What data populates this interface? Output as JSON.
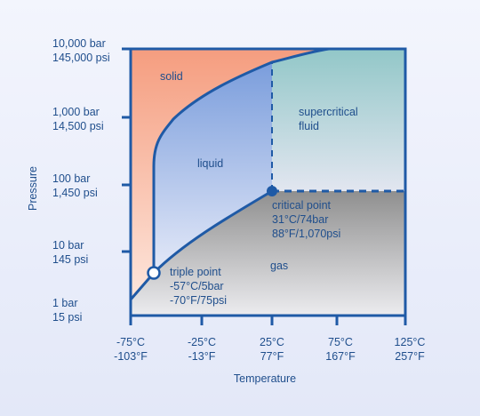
{
  "colors": {
    "axis": "#1f5aa6",
    "curve": "#1f5aa6",
    "text": "#1f4e8c",
    "solid_region": "#f4a58a",
    "liquid_region": "#8aa8e0",
    "supercritical_region": "#9fcfd0",
    "gas_region": "#9e9e9e"
  },
  "axes": {
    "y_title": "Pressure",
    "x_title": "Temperature",
    "y_ticks": [
      {
        "line1": "10,000 bar",
        "line2": "145,000 psi"
      },
      {
        "line1": "1,000 bar",
        "line2": "14,500 psi"
      },
      {
        "line1": "100 bar",
        "line2": "1,450 psi"
      },
      {
        "line1": "10 bar",
        "line2": "145 psi"
      },
      {
        "line1": "1 bar",
        "line2": "15 psi"
      }
    ],
    "x_ticks": [
      {
        "line1": "-75°C",
        "line2": "-103°F"
      },
      {
        "line1": "-25°C",
        "line2": "-13°F"
      },
      {
        "line1": "25°C",
        "line2": "77°F"
      },
      {
        "line1": "75°C",
        "line2": "167°F"
      },
      {
        "line1": "125°C",
        "line2": "257°F"
      }
    ]
  },
  "regions": {
    "solid": "solid",
    "liquid": "liquid",
    "supercritical_line1": "supercritical",
    "supercritical_line2": "fluid",
    "gas": "gas"
  },
  "points": {
    "critical": {
      "title": "critical point",
      "line1": "31°C/74bar",
      "line2": "88°F/1,070psi"
    },
    "triple": {
      "title": "triple point",
      "line1": "-57°C/5bar",
      "line2": "-70°F/75psi"
    }
  }
}
